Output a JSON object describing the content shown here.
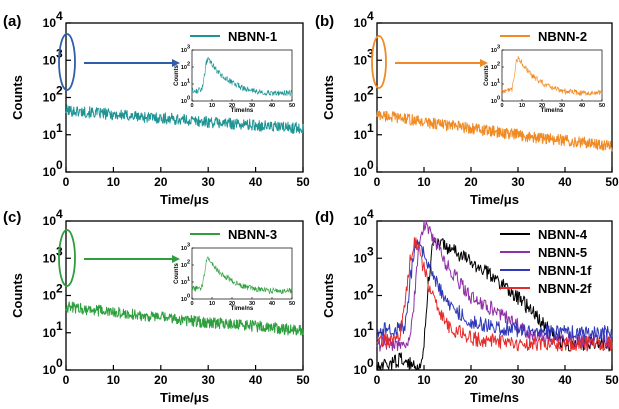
{
  "chart_data": [
    {
      "id": "a",
      "panel_label": "(a)",
      "type": "line",
      "xlabel": "Time/μs",
      "ylabel": "Counts",
      "x_ticks": [
        "0",
        "10",
        "20",
        "30",
        "40",
        "50"
      ],
      "y_ticks": [
        "10",
        "10",
        "10",
        "10",
        "10"
      ],
      "y_tick_exponents": [
        "0",
        "1",
        "2",
        "3",
        "4"
      ],
      "xlim": [
        0,
        50
      ],
      "ylim": [
        1,
        10000
      ],
      "y_scale": "log",
      "legend_position": "top-right",
      "series": [
        {
          "name": "NBNN-1",
          "color": "#1e9494",
          "x": [
            0,
            5,
            10,
            15,
            20,
            25,
            30,
            35,
            40,
            45,
            50
          ],
          "y": [
            45,
            40,
            35,
            31,
            28,
            25,
            22,
            20,
            18,
            16,
            15
          ]
        }
      ],
      "inset": {
        "type": "line",
        "xlabel": "Time/ns",
        "ylabel": "Counts",
        "x_ticks": [
          "0",
          "10",
          "20",
          "30",
          "40",
          "50"
        ],
        "y_ticks": [
          "10",
          "10",
          "10",
          "10"
        ],
        "y_tick_exponents": [
          "0",
          "1",
          "2",
          "3"
        ],
        "xlim": [
          0,
          50
        ],
        "ylim": [
          1,
          1000
        ],
        "y_scale": "log",
        "series": [
          {
            "color": "#1e9494",
            "x": [
              0,
              3,
              5,
              6,
              7,
              8,
              10,
              12,
              15,
              20,
              25,
              30,
              40,
              50
            ],
            "y": [
              4,
              4,
              5,
              20,
              150,
              280,
              150,
              70,
              30,
              12,
              6,
              4,
              3,
              3
            ]
          }
        ]
      }
    },
    {
      "id": "b",
      "panel_label": "(b)",
      "type": "line",
      "xlabel": "Time/μs",
      "ylabel": "Counts",
      "x_ticks": [
        "0",
        "10",
        "20",
        "30",
        "40",
        "50"
      ],
      "y_ticks": [
        "10",
        "10",
        "10",
        "10",
        "10"
      ],
      "y_tick_exponents": [
        "0",
        "1",
        "2",
        "3",
        "4"
      ],
      "xlim": [
        0,
        50
      ],
      "ylim": [
        1,
        10000
      ],
      "y_scale": "log",
      "legend_position": "top-right",
      "series": [
        {
          "name": "NBNN-2",
          "color": "#f08a24",
          "x": [
            0,
            5,
            10,
            15,
            20,
            25,
            30,
            35,
            40,
            45,
            50
          ],
          "y": [
            35,
            28,
            22,
            18,
            15,
            12,
            10,
            8,
            7,
            6,
            5
          ]
        }
      ],
      "inset": {
        "type": "line",
        "xlabel": "Time/ns",
        "ylabel": "Counts",
        "x_ticks": [
          "0",
          "10",
          "20",
          "30",
          "40",
          "50"
        ],
        "y_ticks": [
          "10",
          "10",
          "10",
          "10"
        ],
        "y_tick_exponents": [
          "0",
          "1",
          "2",
          "3"
        ],
        "xlim": [
          0,
          50
        ],
        "ylim": [
          1,
          1000
        ],
        "y_scale": "log",
        "series": [
          {
            "color": "#f08a24",
            "x": [
              0,
              3,
              5,
              6,
              7,
              8,
              10,
              12,
              15,
              20,
              25,
              30,
              40,
              50
            ],
            "y": [
              4,
              4,
              5,
              25,
              180,
              350,
              180,
              80,
              30,
              12,
              6,
              4,
              3,
              3
            ]
          }
        ]
      }
    },
    {
      "id": "c",
      "panel_label": "(c)",
      "type": "line",
      "xlabel": "Time/μs",
      "ylabel": "Counts",
      "x_ticks": [
        "0",
        "10",
        "20",
        "30",
        "40",
        "50"
      ],
      "y_ticks": [
        "10",
        "10",
        "10",
        "10",
        "10"
      ],
      "y_tick_exponents": [
        "0",
        "1",
        "2",
        "3",
        "4"
      ],
      "xlim": [
        0,
        50
      ],
      "ylim": [
        1,
        10000
      ],
      "y_scale": "log",
      "legend_position": "top-right",
      "series": [
        {
          "name": "NBNN-3",
          "color": "#2e9e3e",
          "x": [
            0,
            5,
            10,
            15,
            20,
            25,
            30,
            35,
            40,
            45,
            50
          ],
          "y": [
            50,
            42,
            35,
            30,
            26,
            22,
            19,
            17,
            15,
            13,
            11
          ]
        }
      ],
      "inset": {
        "type": "line",
        "xlabel": "Time/ns",
        "ylabel": "Counts",
        "x_ticks": [
          "0",
          "10",
          "20",
          "30",
          "40",
          "50"
        ],
        "y_ticks": [
          "10",
          "10",
          "10",
          "10"
        ],
        "y_tick_exponents": [
          "0",
          "1",
          "2",
          "3"
        ],
        "xlim": [
          0,
          50
        ],
        "ylim": [
          1,
          1000
        ],
        "y_scale": "log",
        "series": [
          {
            "color": "#2e9e3e",
            "x": [
              0,
              3,
              5,
              6,
              7,
              8,
              10,
              12,
              15,
              20,
              25,
              30,
              40,
              50
            ],
            "y": [
              4,
              4,
              5,
              20,
              140,
              260,
              140,
              65,
              28,
              12,
              6,
              4,
              3,
              3
            ]
          }
        ]
      }
    },
    {
      "id": "d",
      "panel_label": "(d)",
      "type": "line",
      "xlabel": "Time/ns",
      "ylabel": "Counts",
      "x_ticks": [
        "0",
        "10",
        "20",
        "30",
        "40",
        "50"
      ],
      "y_ticks": [
        "10",
        "10",
        "10",
        "10",
        "10"
      ],
      "y_tick_exponents": [
        "0",
        "1",
        "2",
        "3",
        "4"
      ],
      "xlim": [
        0,
        50
      ],
      "ylim": [
        1,
        10000
      ],
      "y_scale": "log",
      "legend_position": "top-right",
      "series": [
        {
          "name": "NBNN-4",
          "color": "#000000",
          "x": [
            0,
            5,
            9,
            10,
            11,
            12,
            15,
            20,
            25,
            30,
            35,
            38,
            40,
            45,
            50
          ],
          "y": [
            1,
            2,
            1,
            5,
            300,
            3000,
            2000,
            800,
            300,
            90,
            20,
            8,
            5,
            5,
            5
          ]
        },
        {
          "name": "NBNN-5",
          "color": "#8e2fa6",
          "x": [
            0,
            5,
            7,
            8,
            9,
            10,
            12,
            15,
            20,
            25,
            28,
            32,
            38,
            45,
            50
          ],
          "y": [
            5,
            5,
            5,
            100,
            3000,
            9000,
            3500,
            600,
            90,
            40,
            25,
            10,
            7,
            6,
            6
          ]
        },
        {
          "name": "NBNN-1f",
          "color": "#2f38b8",
          "x": [
            0,
            4,
            6,
            7,
            8,
            9,
            10,
            12,
            15,
            20,
            25,
            30,
            40,
            50
          ],
          "y": [
            12,
            12,
            15,
            200,
            2000,
            2600,
            1400,
            300,
            60,
            20,
            14,
            12,
            10,
            10
          ]
        },
        {
          "name": "NBNN-2f",
          "color": "#e62b2b",
          "x": [
            0,
            4,
            5,
            6,
            7,
            8,
            9,
            10,
            12,
            15,
            20,
            25,
            30,
            40,
            50
          ],
          "y": [
            6,
            6,
            10,
            80,
            800,
            2800,
            1500,
            500,
            80,
            15,
            7,
            6,
            5,
            5,
            5
          ]
        }
      ]
    }
  ]
}
